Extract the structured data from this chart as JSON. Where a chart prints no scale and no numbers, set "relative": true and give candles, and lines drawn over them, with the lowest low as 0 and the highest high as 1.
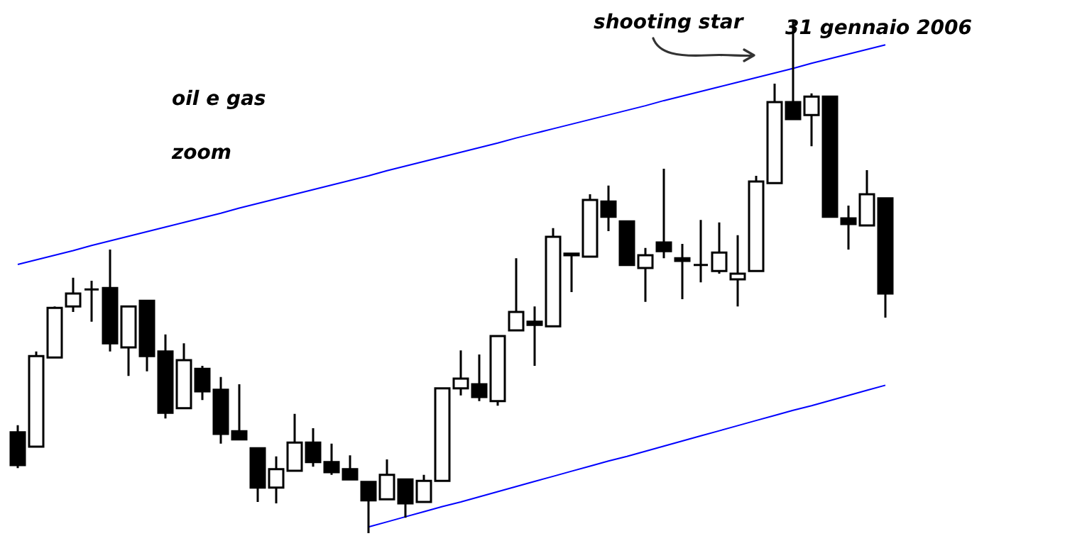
{
  "chart_data": {
    "type": "candlestick",
    "title": "oil e gas",
    "subtitle": "zoom",
    "relative": true,
    "annotations": [
      "shooting star",
      "31 gennaio 2006"
    ],
    "categories": [
      null,
      null,
      null,
      null,
      null,
      null,
      null,
      null,
      null,
      null,
      null,
      null,
      null,
      null,
      null,
      null,
      null,
      null,
      null,
      null,
      null,
      null,
      null,
      null,
      null,
      null,
      null,
      null,
      null,
      null,
      null,
      null,
      null,
      null,
      null,
      null,
      null,
      null,
      null,
      null,
      null,
      null,
      null,
      null,
      null,
      null,
      null,
      null
    ],
    "ohlc": [
      [
        0.197,
        0.211,
        0.127,
        0.133
      ],
      [
        0.169,
        0.355,
        0.169,
        0.346
      ],
      [
        0.343,
        0.443,
        0.343,
        0.44
      ],
      [
        0.443,
        0.499,
        0.432,
        0.468
      ],
      [
        0.476,
        0.493,
        0.413,
        0.476
      ],
      [
        0.479,
        0.554,
        0.355,
        0.371
      ],
      [
        0.363,
        0.443,
        0.307,
        0.443
      ],
      [
        0.454,
        0.454,
        0.316,
        0.346
      ],
      [
        0.355,
        0.388,
        0.224,
        0.235
      ],
      [
        0.244,
        0.371,
        0.244,
        0.338
      ],
      [
        0.321,
        0.327,
        0.26,
        0.277
      ],
      [
        0.28,
        0.305,
        0.175,
        0.194
      ],
      [
        0.199,
        0.291,
        0.183,
        0.183
      ],
      [
        0.166,
        0.166,
        0.061,
        0.089
      ],
      [
        0.089,
        0.15,
        0.058,
        0.125
      ],
      [
        0.122,
        0.233,
        0.122,
        0.177
      ],
      [
        0.177,
        0.205,
        0.13,
        0.139
      ],
      [
        0.139,
        0.175,
        0.114,
        0.119
      ],
      [
        0.125,
        0.152,
        0.105,
        0.105
      ],
      [
        0.1,
        0.1,
        0,
        0.064
      ],
      [
        0.066,
        0.144,
        0.066,
        0.114
      ],
      [
        0.105,
        0.105,
        0.03,
        0.058
      ],
      [
        0.061,
        0.114,
        0.061,
        0.102
      ],
      [
        0.102,
        0.285,
        0.102,
        0.283
      ],
      [
        0.283,
        0.357,
        0.269,
        0.302
      ],
      [
        0.291,
        0.349,
        0.258,
        0.266
      ],
      [
        0.258,
        0.385,
        0.249,
        0.385
      ],
      [
        0.396,
        0.537,
        0.396,
        0.432
      ],
      [
        0.413,
        0.443,
        0.327,
        0.407
      ],
      [
        0.404,
        0.596,
        0.404,
        0.579
      ],
      [
        0.546,
        0.548,
        0.471,
        0.543
      ],
      [
        0.54,
        0.662,
        0.54,
        0.651
      ],
      [
        0.648,
        0.679,
        0.59,
        0.618
      ],
      [
        0.609,
        0.609,
        0.524,
        0.524
      ],
      [
        0.518,
        0.557,
        0.452,
        0.543
      ],
      [
        0.568,
        0.712,
        0.537,
        0.551
      ],
      [
        0.537,
        0.565,
        0.457,
        0.532
      ],
      [
        0.524,
        0.612,
        0.49,
        0.524
      ],
      [
        0.512,
        0.607,
        0.507,
        0.548
      ],
      [
        0.496,
        0.582,
        0.443,
        0.507
      ],
      [
        0.512,
        0.698,
        0.512,
        0.687
      ],
      [
        0.684,
        0.878,
        0.684,
        0.842
      ],
      [
        0.842,
        1,
        0.809,
        0.809
      ],
      [
        0.817,
        0.859,
        0.756,
        0.853
      ],
      [
        0.853,
        0.853,
        0.618,
        0.618
      ],
      [
        0.615,
        0.64,
        0.554,
        0.604
      ],
      [
        0.601,
        0.709,
        0.601,
        0.662
      ],
      [
        0.654,
        0.654,
        0.421,
        0.468
      ]
    ],
    "series": [
      {
        "type": "line",
        "color": "#0000ff",
        "values": [
          0.525,
          0.534,
          0.543,
          0.552,
          0.562,
          0.571,
          0.58,
          0.589,
          0.598,
          0.607,
          0.616,
          0.625,
          0.635,
          0.644,
          0.653,
          0.662,
          0.671,
          0.68,
          0.689,
          0.698,
          0.708,
          0.717,
          0.726,
          0.735,
          0.744,
          0.753,
          0.762,
          0.772,
          0.781,
          0.79,
          0.799,
          0.808,
          0.817,
          0.826,
          0.835,
          0.845,
          0.854,
          0.863,
          0.872,
          0.881,
          0.89,
          0.899,
          0.908,
          0.918,
          0.927,
          0.936,
          0.945,
          0.954
        ]
      },
      {
        "type": "line",
        "color": "#0000ff",
        "values": [
          null,
          null,
          null,
          null,
          null,
          null,
          null,
          null,
          null,
          null,
          null,
          null,
          null,
          null,
          null,
          null,
          null,
          null,
          null,
          0.012,
          0.022,
          0.032,
          0.042,
          0.052,
          0.061,
          0.071,
          0.081,
          0.091,
          0.101,
          0.111,
          0.121,
          0.131,
          0.141,
          0.15,
          0.16,
          0.17,
          0.18,
          0.19,
          0.2,
          0.21,
          0.22,
          0.23,
          0.24,
          0.249,
          0.259,
          0.269,
          0.279,
          0.289
        ]
      }
    ],
    "marker": "none"
  }
}
